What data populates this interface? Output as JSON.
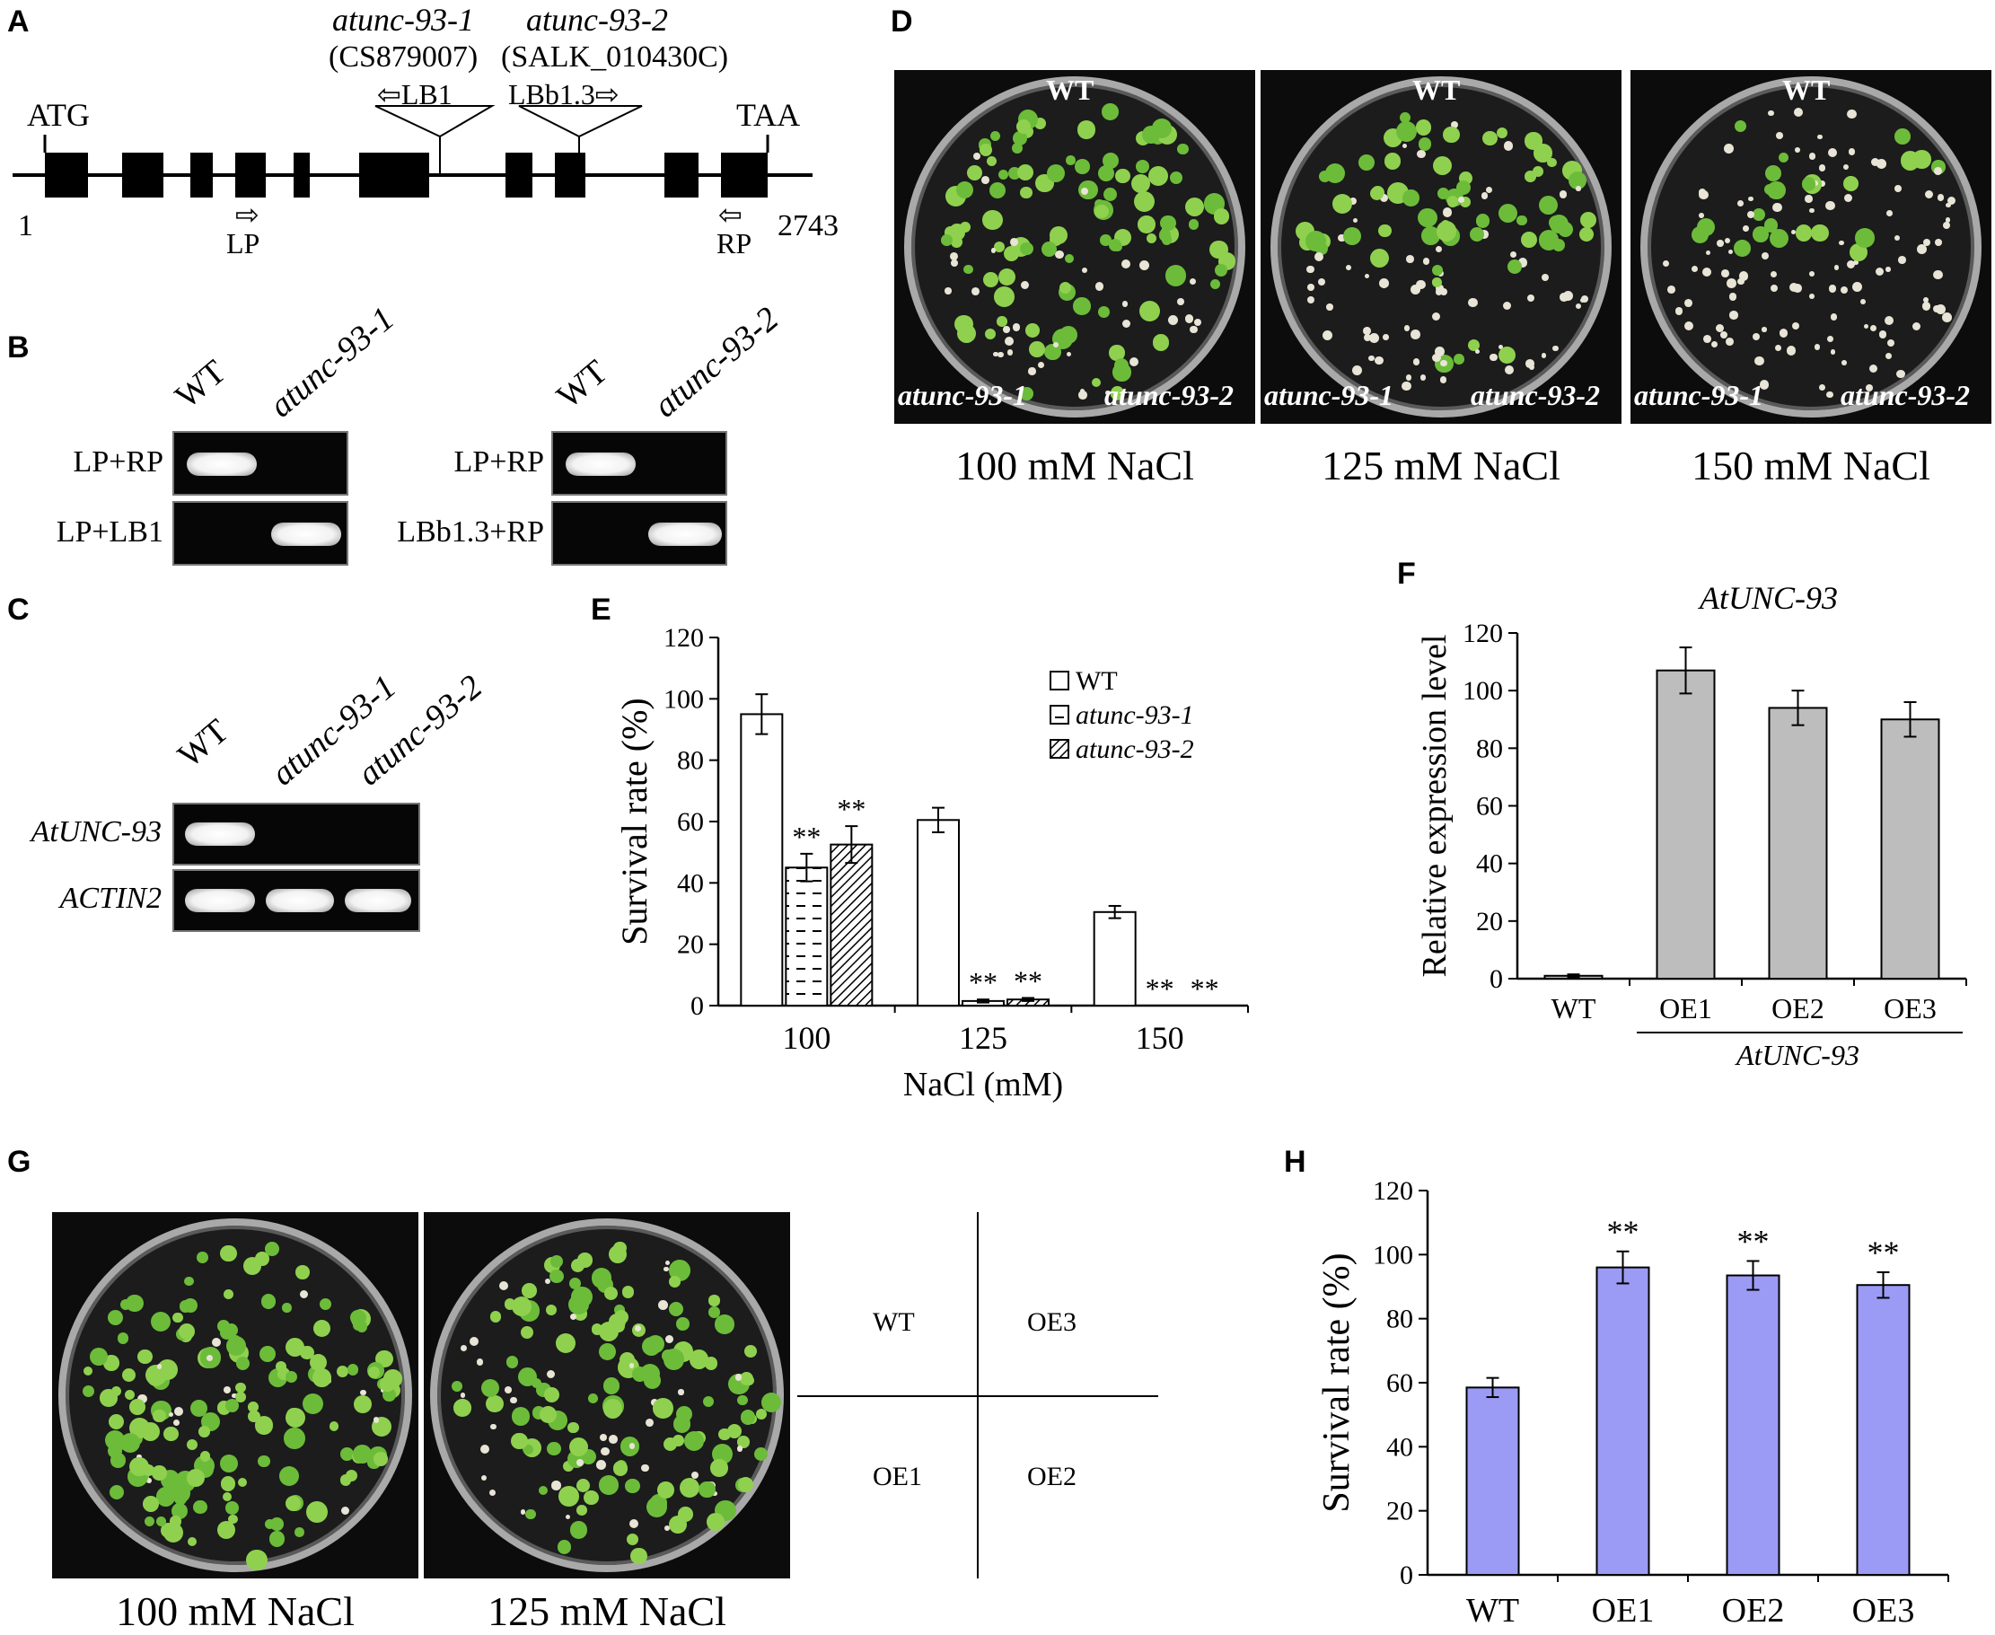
{
  "panels": {
    "A": "A",
    "B": "B",
    "C": "C",
    "D": "D",
    "E": "E",
    "F": "F",
    "G": "G",
    "H": "H"
  },
  "gene_model": {
    "allele1_name": "atunc-93-1",
    "allele1_id": "(CS879007)",
    "allele2_name": "atunc-93-2",
    "allele2_id": "(SALK_010430C)",
    "insert1_primer": "⇦LB1",
    "insert2_primer": "LBb1.3⇨",
    "start_codon": "ATG",
    "stop_codon": "TAA",
    "start_pos": "1",
    "end_pos": "2743",
    "lp_arrow": "⇨",
    "lp_label": "LP",
    "rp_arrow": "⇦",
    "rp_label": "RP"
  },
  "panel_b": {
    "gel1": {
      "col_wt": "WT",
      "col_mut": "atunc-93-1",
      "row1": "LP+RP",
      "row2": "LP+LB1"
    },
    "gel2": {
      "col_wt": "WT",
      "col_mut": "atunc-93-2",
      "row1": "LP+RP",
      "row2": "LBb1.3+RP"
    }
  },
  "panel_c": {
    "cols": [
      "WT",
      "atunc-93-1",
      "atunc-93-2"
    ],
    "row1": "AtUNC-93",
    "row2": "ACTIN2"
  },
  "panel_d": {
    "plates": [
      {
        "top": "WT",
        "left": "atunc-93-1",
        "right": "atunc-93-2",
        "caption": "100 mM NaCl"
      },
      {
        "top": "WT",
        "left": "atunc-93-1",
        "right": "atunc-93-2",
        "caption": "125 mM NaCl"
      },
      {
        "top": "WT",
        "left": "atunc-93-1",
        "right": "atunc-93-2",
        "caption": "150 mM NaCl"
      }
    ]
  },
  "panel_g": {
    "captions": [
      "100 mM NaCl",
      "125 mM NaCl"
    ],
    "layout_labels": {
      "tl": "WT",
      "tr": "OE3",
      "bl": "OE1",
      "br": "OE2"
    }
  },
  "chart_data": [
    {
      "panel": "E",
      "type": "bar",
      "title": "",
      "xlabel": "NaCl (mM)",
      "ylabel": "Survival rate (%)",
      "ylim": [
        0,
        120
      ],
      "yticks": [
        0,
        20,
        40,
        60,
        80,
        100,
        120
      ],
      "categories": [
        "100",
        "125",
        "150"
      ],
      "legend_position": "top-right",
      "series": [
        {
          "name": "WT",
          "values": [
            95,
            60.5,
            30.5
          ],
          "errors": [
            6.5,
            4,
            2
          ],
          "sig": [
            "",
            "",
            ""
          ],
          "pattern": "white"
        },
        {
          "name": "atunc-93-1",
          "values": [
            45,
            1.5,
            0
          ],
          "errors": [
            4.5,
            0.5,
            0
          ],
          "sig": [
            "**",
            "**",
            "**"
          ],
          "pattern": "dash"
        },
        {
          "name": "atunc-93-2",
          "values": [
            52.5,
            2,
            0
          ],
          "errors": [
            6,
            0.5,
            0
          ],
          "sig": [
            "**",
            "**",
            "**"
          ],
          "pattern": "hatch"
        }
      ]
    },
    {
      "panel": "F",
      "type": "bar",
      "title": "AtUNC-93",
      "xlabel": "",
      "ylabel": "Relative expression level",
      "ylim": [
        0,
        120
      ],
      "yticks": [
        0,
        20,
        40,
        60,
        80,
        100,
        120
      ],
      "categories": [
        "WT",
        "OE1",
        "OE2",
        "OE3"
      ],
      "group_label": "AtUNC-93",
      "color": "#bdbdbd",
      "series": [
        {
          "values": [
            1,
            107,
            94,
            90
          ],
          "errors": [
            0.5,
            8,
            6,
            6
          ]
        }
      ]
    },
    {
      "panel": "H",
      "type": "bar",
      "title": "",
      "xlabel": "",
      "ylabel": "Survival rate (%)",
      "ylim": [
        0,
        120
      ],
      "yticks": [
        0,
        20,
        40,
        60,
        80,
        100,
        120
      ],
      "categories": [
        "WT",
        "OE1",
        "OE2",
        "OE3"
      ],
      "color": "#9b9bf5",
      "series": [
        {
          "values": [
            58.5,
            96,
            93.5,
            90.5
          ],
          "errors": [
            3,
            5,
            4.5,
            4
          ],
          "sig": [
            "",
            "**",
            "**",
            "**"
          ]
        }
      ]
    }
  ]
}
